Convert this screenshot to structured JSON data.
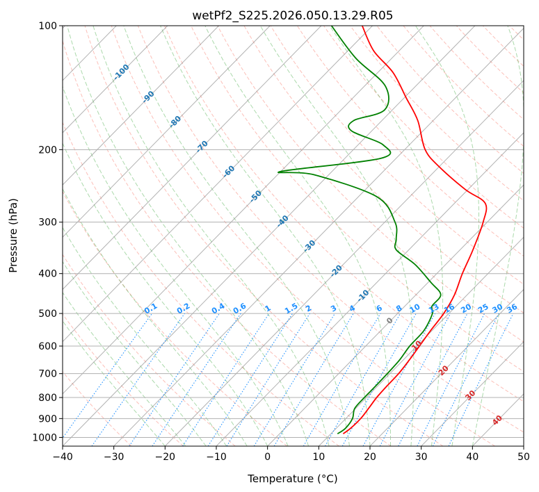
{
  "chart_data": {
    "type": "line",
    "title": "wetPf2_S225.2026.050.13.29.R05",
    "xlabel": "Temperature (°C)",
    "ylabel": "Pressure (hPa)",
    "xlim": [
      -40,
      50
    ],
    "ylim": [
      1050,
      100
    ],
    "yscale": "log",
    "grid": true,
    "x_ticks": [
      -40,
      -30,
      -20,
      -10,
      0,
      10,
      20,
      30,
      40,
      50
    ],
    "y_ticks": [
      100,
      200,
      300,
      400,
      500,
      600,
      700,
      800,
      900,
      1000
    ],
    "isotherm_labels": [
      -100,
      -90,
      -80,
      -70,
      -60,
      -50,
      -40,
      -30,
      -20,
      -10,
      0,
      10,
      20,
      30,
      40
    ],
    "mixing_ratio_labels": [
      "0.1",
      "0.2",
      "0.4",
      "0.6",
      "1",
      "1.5",
      "2",
      "3",
      "4",
      "6",
      "8",
      "10",
      "13",
      "16",
      "20",
      "25",
      "30",
      "36"
    ],
    "colors": {
      "temperature": "#ff0000",
      "dewpoint": "#008000",
      "dry_adiabat": "#fa8072",
      "moist_adiabat": "#2ca02c",
      "mixing_ratio": "#1f77b4",
      "isotherm": "#808080",
      "label_blue": "#1f77b4",
      "label_red": "#d62728",
      "label_mixing": "#1e90ff"
    },
    "series": [
      {
        "id": "temperature",
        "points": [
          [
            12.4,
            980
          ],
          [
            12.8,
            950
          ],
          [
            12.9,
            900
          ],
          [
            12.5,
            850
          ],
          [
            12.0,
            800
          ],
          [
            11.8,
            750
          ],
          [
            11.7,
            700
          ],
          [
            11.2,
            650
          ],
          [
            10.5,
            600
          ],
          [
            9.7,
            550
          ],
          [
            9.0,
            500
          ],
          [
            7.5,
            450
          ],
          [
            5.0,
            400
          ],
          [
            2.5,
            350
          ],
          [
            -0.8,
            300
          ],
          [
            -4.0,
            270
          ],
          [
            -10.5,
            250
          ],
          [
            -20.0,
            220
          ],
          [
            -26.0,
            200
          ],
          [
            -33.0,
            170
          ],
          [
            -39.5,
            150
          ],
          [
            -47.0,
            130
          ],
          [
            -55.0,
            115
          ],
          [
            -62.0,
            100
          ]
        ]
      },
      {
        "id": "dewpoint",
        "points": [
          [
            11.3,
            980
          ],
          [
            11.8,
            950
          ],
          [
            11.3,
            900
          ],
          [
            9.8,
            850
          ],
          [
            9.6,
            800
          ],
          [
            9.6,
            750
          ],
          [
            9.5,
            700
          ],
          [
            9.3,
            650
          ],
          [
            8.6,
            600
          ],
          [
            8.4,
            550
          ],
          [
            6.8,
            500
          ],
          [
            5.3,
            480
          ],
          [
            4.8,
            450
          ],
          [
            0.5,
            420
          ],
          [
            -6.0,
            380
          ],
          [
            -12.5,
            350
          ],
          [
            -14.5,
            330
          ],
          [
            -18.0,
            300
          ],
          [
            -26.5,
            260
          ],
          [
            -43.0,
            230
          ],
          [
            -50.0,
            226
          ],
          [
            -33.0,
            210
          ],
          [
            -35.0,
            195
          ],
          [
            -44.0,
            180
          ],
          [
            -45.5,
            170
          ],
          [
            -41.5,
            160
          ],
          [
            -46.0,
            140
          ],
          [
            -57.0,
            120
          ],
          [
            -68.0,
            100
          ]
        ]
      }
    ]
  }
}
